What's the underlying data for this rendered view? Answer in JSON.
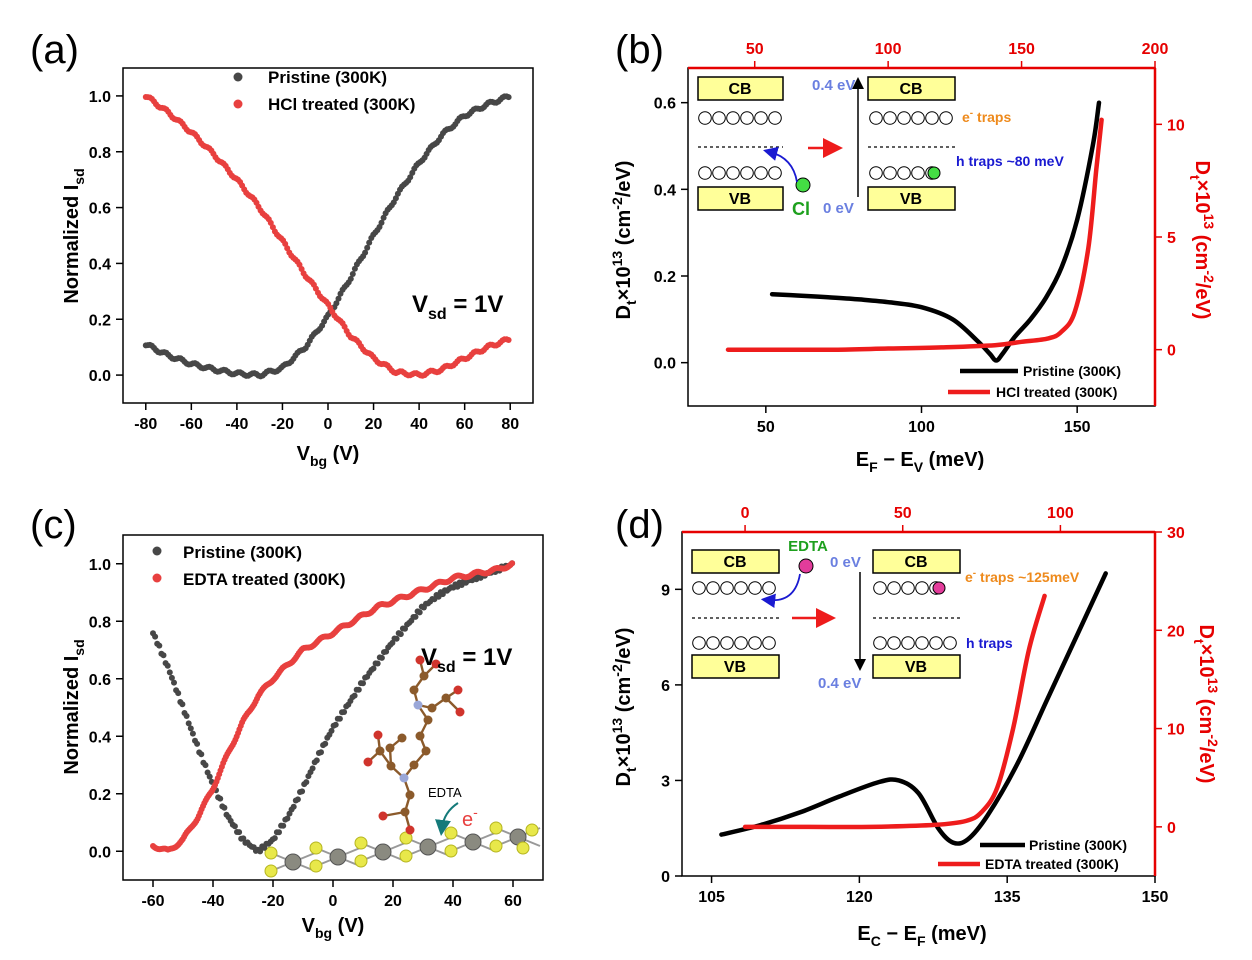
{
  "colors": {
    "black": "#000000",
    "pristine": "#474747",
    "treated": "#e8403f",
    "red_line": "#ee1c1c",
    "axis_red": "#e60000",
    "band_fill": "#ffff99",
    "blue": "#1a1ad1",
    "orange": "#ee8a1c",
    "green": "#1ea01e",
    "cl_fill": "#44dd44",
    "edta_fill": "#e33c9b",
    "light_blue": "#6a7fe0",
    "teal": "#147a7a"
  },
  "panels": {
    "a": {
      "label": "(a)",
      "legend": [
        "Pristine (300K)",
        "HCl treated (300K)"
      ],
      "annotation": {
        "main": "V",
        "sub": "sd",
        "tail": " = 1V"
      },
      "xlabel": {
        "main": "V",
        "sub": "bg",
        "tail": " (V)"
      },
      "ylabel": {
        "main": "Normalized I",
        "sub": "sd"
      },
      "xticks": [
        "-80",
        "-60",
        "-40",
        "-20",
        "0",
        "20",
        "40",
        "60",
        "80"
      ],
      "yticks": [
        "0.0",
        "0.2",
        "0.4",
        "0.6",
        "0.8",
        "1.0"
      ]
    },
    "b": {
      "label": "(b)",
      "legend": [
        "Pristine (300K)",
        "HCl treated (300K)"
      ],
      "xlabel": {
        "p1": "E",
        "s1": "F",
        "p2": " − E",
        "s2": "V",
        "p3": " (meV)"
      },
      "ylabel_left": {
        "p1": "D",
        "s1": "t",
        "p2": "×10",
        "sup": "13",
        "p3": " (cm",
        "sup2": "-2",
        "p4": "/eV)"
      },
      "ylabel_right": {
        "p1": "D",
        "s1": "t",
        "p2": "×10",
        "sup": "13",
        "p3": " (cm",
        "sup2": "-2",
        "p4": "/eV)"
      },
      "xticks": [
        "50",
        "100",
        "150"
      ],
      "yticks_left": [
        "0.0",
        "0.2",
        "0.4",
        "0.6"
      ],
      "xticks_top": [
        "50",
        "100",
        "150",
        "200"
      ],
      "yticks_right": [
        "0",
        "5",
        "10"
      ],
      "inset": {
        "cb": "CB",
        "vb": "VB",
        "vb2": "VB",
        "cl": "Cl",
        "e_top": "0.4 eV",
        "e_bottom": "0 eV",
        "e_traps": "e",
        "e_traps_sup": "-",
        "e_traps_tail": " traps",
        "h_traps": "h traps ~80 meV"
      }
    },
    "c": {
      "label": "(c)",
      "legend": [
        "Pristine (300K)",
        "EDTA treated (300K)"
      ],
      "annotation": {
        "main": "V",
        "sub": "sd",
        "tail": " = 1V"
      },
      "xlabel": {
        "main": "V",
        "sub": "bg",
        "tail": " (V)"
      },
      "ylabel": {
        "main": "Normalized I",
        "sub": "sd"
      },
      "xticks": [
        "-60",
        "-40",
        "-20",
        "0",
        "20",
        "40",
        "60"
      ],
      "yticks": [
        "0.0",
        "0.2",
        "0.4",
        "0.6",
        "0.8",
        "1.0"
      ],
      "inset": {
        "edta": "EDTA",
        "electron": "e",
        "electron_sup": "-"
      }
    },
    "d": {
      "label": "(d)",
      "legend": [
        "Pristine (300K)",
        "EDTA treated (300K)"
      ],
      "xlabel": {
        "p1": "E",
        "s1": "C",
        "p2": " − E",
        "s2": "F",
        "p3": " (meV)"
      },
      "ylabel_left": {
        "p1": "D",
        "s1": "t",
        "p2": "×10",
        "sup": "13",
        "p3": " (cm",
        "sup2": "-2",
        "p4": "/eV)"
      },
      "ylabel_right": {
        "p1": "D",
        "s1": "t",
        "p2": "×10",
        "sup": "13",
        "p3": " (cm",
        "sup2": "-2",
        "p4": "/eV)"
      },
      "xticks": [
        "105",
        "120",
        "135",
        "150"
      ],
      "yticks_left": [
        "0",
        "3",
        "6",
        "9"
      ],
      "xticks_top": [
        "0",
        "50",
        "100"
      ],
      "yticks_right": [
        "0",
        "10",
        "20",
        "30"
      ],
      "inset": {
        "cb": "CB",
        "vb": "VB",
        "edta": "EDTA",
        "e_top": "0 eV",
        "e_bottom": "0.4 eV",
        "e_traps": "e",
        "e_traps_sup": "-",
        "e_traps_tail": " traps ~125meV",
        "h_traps": "h traps"
      }
    }
  },
  "chart_data": [
    {
      "panel": "a",
      "type": "scatter",
      "xlabel": "Vbg (V)",
      "ylabel": "Normalized Isd",
      "xlim": [
        -90,
        90
      ],
      "ylim": [
        -0.1,
        1.1
      ],
      "series": [
        {
          "name": "Pristine (300K)",
          "x": [
            -80,
            -70,
            -60,
            -50,
            -40,
            -30,
            -20,
            -10,
            0,
            10,
            20,
            30,
            40,
            50,
            60,
            70,
            80
          ],
          "y": [
            0.11,
            0.07,
            0.04,
            0.02,
            0.005,
            0.0,
            0.025,
            0.1,
            0.21,
            0.35,
            0.5,
            0.64,
            0.76,
            0.86,
            0.93,
            0.97,
            1.0
          ]
        },
        {
          "name": "HCl treated (300K)",
          "x": [
            -80,
            -70,
            -60,
            -50,
            -40,
            -30,
            -20,
            -10,
            0,
            10,
            20,
            30,
            40,
            50,
            60,
            70,
            80
          ],
          "y": [
            1.0,
            0.94,
            0.87,
            0.79,
            0.7,
            0.6,
            0.48,
            0.36,
            0.25,
            0.14,
            0.06,
            0.01,
            0.0,
            0.02,
            0.06,
            0.1,
            0.13
          ]
        }
      ]
    },
    {
      "panel": "b",
      "type": "line",
      "xlabel": "EF − EV (meV)",
      "xlim": [
        25,
        175
      ],
      "ylim": [
        -0.1,
        0.68
      ],
      "x2lim": [
        25,
        200
      ],
      "y2lim": [
        -2.5,
        12.5
      ],
      "series": [
        {
          "name": "Pristine (300K)",
          "axis": "left/bottom",
          "x": [
            52,
            60,
            70,
            80,
            90,
            100,
            110,
            118,
            122,
            124,
            126,
            130,
            135,
            140,
            145,
            150,
            155,
            157
          ],
          "y": [
            0.158,
            0.155,
            0.151,
            0.146,
            0.139,
            0.128,
            0.1,
            0.05,
            0.02,
            0.005,
            0.02,
            0.06,
            0.1,
            0.15,
            0.22,
            0.33,
            0.5,
            0.6
          ]
        },
        {
          "name": "HCl treated (300K)",
          "axis": "right/top",
          "x": [
            40,
            60,
            80,
            100,
            120,
            140,
            150,
            160,
            165,
            170,
            175,
            178,
            180
          ],
          "y": [
            0,
            0,
            0,
            0.05,
            0.1,
            0.2,
            0.35,
            0.5,
            0.8,
            1.7,
            4.5,
            8.0,
            10.2
          ]
        }
      ]
    },
    {
      "panel": "c",
      "type": "scatter",
      "xlabel": "Vbg (V)",
      "ylabel": "Normalized Isd",
      "xlim": [
        -70,
        70
      ],
      "ylim": [
        -0.1,
        1.1
      ],
      "series": [
        {
          "name": "Pristine (300K)",
          "x": [
            -60,
            -55,
            -50,
            -45,
            -40,
            -35,
            -30,
            -25,
            -20,
            -15,
            -10,
            -5,
            0,
            5,
            10,
            15,
            20,
            25,
            30,
            35,
            40,
            45,
            50,
            55,
            60
          ],
          "y": [
            0.76,
            0.64,
            0.5,
            0.36,
            0.23,
            0.12,
            0.04,
            0.0,
            0.04,
            0.12,
            0.22,
            0.33,
            0.43,
            0.51,
            0.59,
            0.66,
            0.73,
            0.79,
            0.85,
            0.89,
            0.92,
            0.94,
            0.96,
            0.98,
            1.0
          ]
        },
        {
          "name": "EDTA treated (300K)",
          "x": [
            -60,
            -55,
            -50,
            -45,
            -40,
            -35,
            -30,
            -25,
            -20,
            -15,
            -10,
            -5,
            0,
            5,
            10,
            15,
            20,
            25,
            30,
            35,
            40,
            45,
            50,
            55,
            60
          ],
          "y": [
            0.02,
            0.0,
            0.04,
            0.12,
            0.22,
            0.34,
            0.45,
            0.54,
            0.6,
            0.65,
            0.7,
            0.73,
            0.76,
            0.79,
            0.82,
            0.85,
            0.87,
            0.89,
            0.91,
            0.93,
            0.95,
            0.96,
            0.97,
            0.98,
            1.0
          ]
        }
      ]
    },
    {
      "panel": "d",
      "type": "line",
      "xlabel": "EC − EF (meV)",
      "xlim": [
        102,
        150
      ],
      "ylim": [
        0,
        10.8
      ],
      "x2lim": [
        -20,
        130
      ],
      "y2lim": [
        -5,
        30
      ],
      "series": [
        {
          "name": "Pristine (300K)",
          "axis": "left/bottom",
          "x": [
            106,
            110,
            114,
            118,
            122,
            124,
            126,
            128,
            129.5,
            131,
            133,
            136,
            139,
            142,
            145
          ],
          "y": [
            1.3,
            1.6,
            2.0,
            2.5,
            2.95,
            3.0,
            2.6,
            1.5,
            1.05,
            1.15,
            1.9,
            3.5,
            5.5,
            7.5,
            9.5
          ]
        },
        {
          "name": "EDTA treated (300K)",
          "axis": "right/top",
          "x": [
            0,
            20,
            40,
            60,
            70,
            75,
            80,
            85,
            90,
            95
          ],
          "y": [
            0,
            0,
            0,
            0.2,
            0.6,
            1.5,
            4.0,
            10,
            18,
            23.5
          ]
        }
      ]
    }
  ]
}
